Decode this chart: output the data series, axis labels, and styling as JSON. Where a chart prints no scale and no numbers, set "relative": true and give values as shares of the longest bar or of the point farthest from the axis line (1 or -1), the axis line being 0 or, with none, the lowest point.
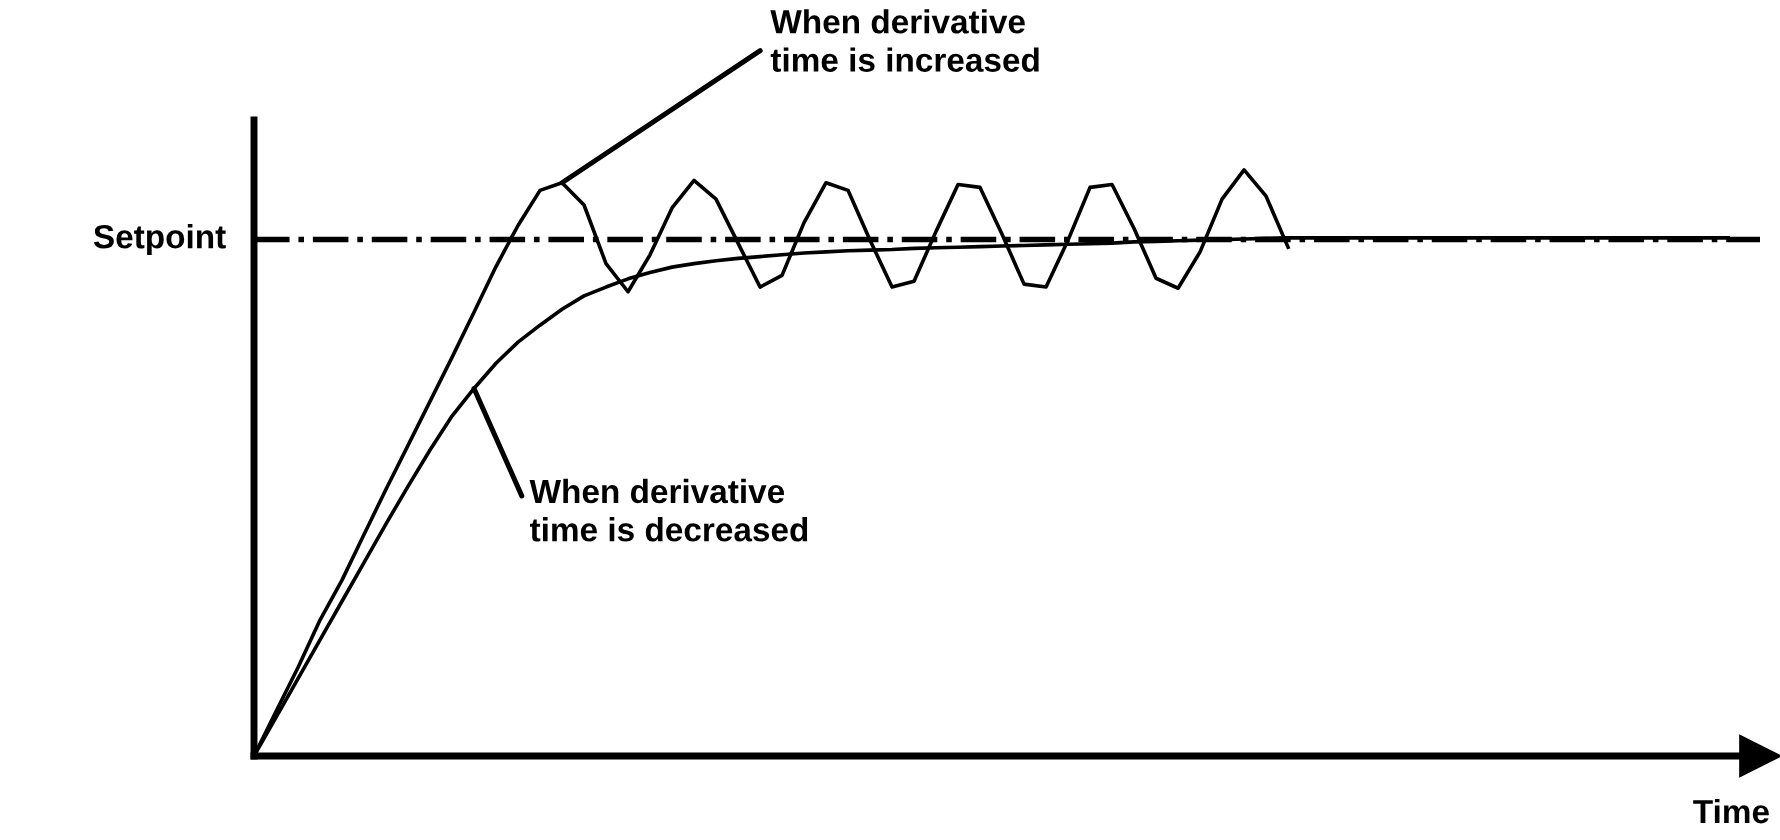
{
  "chart_data": {
    "type": "line",
    "relative": true,
    "xlabel": "Time",
    "line_style": "solid",
    "marker": "none",
    "categories": [
      null,
      null,
      null,
      null,
      null,
      null,
      null,
      null,
      null,
      null,
      null,
      null,
      null,
      null,
      null,
      null,
      null,
      null,
      null,
      null,
      null,
      null,
      null,
      null,
      null,
      null,
      null,
      null,
      null,
      null,
      null,
      null,
      null,
      null,
      null,
      null,
      null,
      null,
      null,
      null,
      null,
      null,
      null,
      null,
      null,
      null,
      null,
      null,
      null,
      null,
      null,
      null,
      null,
      null,
      null,
      null,
      null,
      null,
      null,
      null,
      null,
      null,
      null,
      null,
      null,
      null,
      null,
      null
    ],
    "series": [
      {
        "color": "#000000",
        "values": [
          0,
          0.076,
          0.151,
          0.232,
          0.3,
          0.378,
          0.455,
          0.53,
          0.605,
          0.68,
          0.757,
          0.835,
          0.905,
          0.965,
          0.978,
          0.94,
          0.84,
          0.792,
          0.855,
          0.935,
          0.982,
          0.95,
          0.875,
          0.8,
          0.82,
          0.91,
          0.978,
          0.965,
          0.88,
          0.8,
          0.81,
          0.895,
          0.975,
          0.97,
          0.89,
          0.805,
          0.8,
          0.88,
          0.97,
          0.975,
          0.9,
          0.815,
          0.798,
          0.86,
          0.95,
          1.0,
          0.955,
          0.868,
          null,
          null,
          null,
          null,
          null,
          null,
          null,
          null,
          null,
          null,
          null,
          null,
          null,
          null,
          null,
          null,
          null,
          null,
          null,
          null
        ]
      },
      {
        "color": "#000000",
        "values": [
          0,
          0.066,
          0.132,
          0.198,
          0.264,
          0.33,
          0.396,
          0.46,
          0.522,
          0.58,
          0.627,
          0.67,
          0.706,
          0.735,
          0.762,
          0.785,
          0.8,
          0.814,
          0.825,
          0.834,
          0.84,
          0.845,
          0.849,
          0.852,
          0.855,
          0.858,
          0.86,
          0.862,
          0.863,
          0.864,
          0.866,
          0.867,
          0.868,
          0.869,
          0.87,
          0.871,
          0.872,
          0.873,
          0.874,
          0.875,
          0.877,
          0.878,
          0.879,
          0.88,
          0.881,
          0.882,
          0.883,
          0.884,
          0.884,
          0.884,
          0.884,
          0.884,
          0.884,
          0.884,
          0.884,
          0.884,
          0.884,
          0.884,
          0.884,
          0.884,
          0.884,
          0.884,
          0.884,
          0.884,
          0.884,
          0.884,
          0.884,
          0.884
        ]
      }
    ],
    "ref_lines": [
      {
        "axis": "y",
        "value": 0.881,
        "label": "Setpoint",
        "color": "#000000",
        "line_style": "dashdot"
      }
    ],
    "annotations": [
      "When derivative\ntime is increased",
      "When derivative\ntime is decreased"
    ]
  }
}
